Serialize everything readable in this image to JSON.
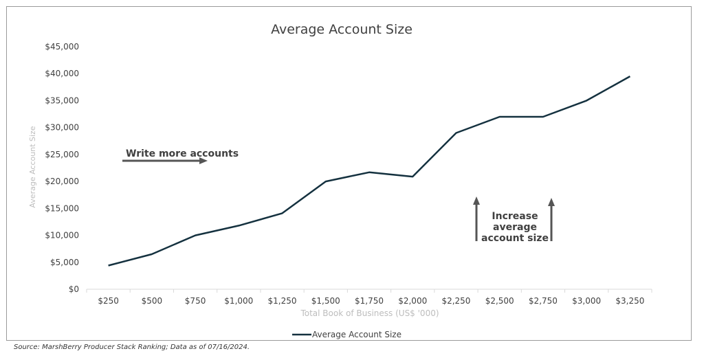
{
  "chart_data": {
    "type": "line",
    "title": "Average Account Size",
    "xlabel": "Total Book of Business (US$ '000)",
    "ylabel": "Average Account Size",
    "categories": [
      "$250",
      "$500",
      "$750",
      "$1,000",
      "$1,250",
      "$1,500",
      "$1,750",
      "$2,000",
      "$2,250",
      "$2,500",
      "$2,750",
      "$3,000",
      "$3,250"
    ],
    "x": [
      250,
      500,
      750,
      1000,
      1250,
      1500,
      1750,
      2000,
      2250,
      2500,
      2750,
      3000,
      3250
    ],
    "series": [
      {
        "name": "Average Account Size",
        "values": [
          4400,
          6500,
          10000,
          11800,
          14100,
          20000,
          21700,
          20900,
          29000,
          32000,
          32000,
          35000,
          39500
        ]
      }
    ],
    "yticks": [
      0,
      5000,
      10000,
      15000,
      20000,
      25000,
      30000,
      35000,
      40000,
      45000
    ],
    "ytick_labels": [
      "$0",
      "$5,000",
      "$10,000",
      "$15,000",
      "$20,000",
      "$25,000",
      "$30,000",
      "$35,000",
      "$40,000",
      "$45,000"
    ],
    "ylim": [
      0,
      45000
    ],
    "grid": false,
    "legend_position": "bottom",
    "line_color": "#14313f",
    "annotations": {
      "write_more": "Write more accounts",
      "increase_lines": [
        "Increase",
        "average",
        "account size"
      ]
    }
  },
  "source_note": "Source: MarshBerry Producer Stack Ranking; Data as of 07/16/2024."
}
